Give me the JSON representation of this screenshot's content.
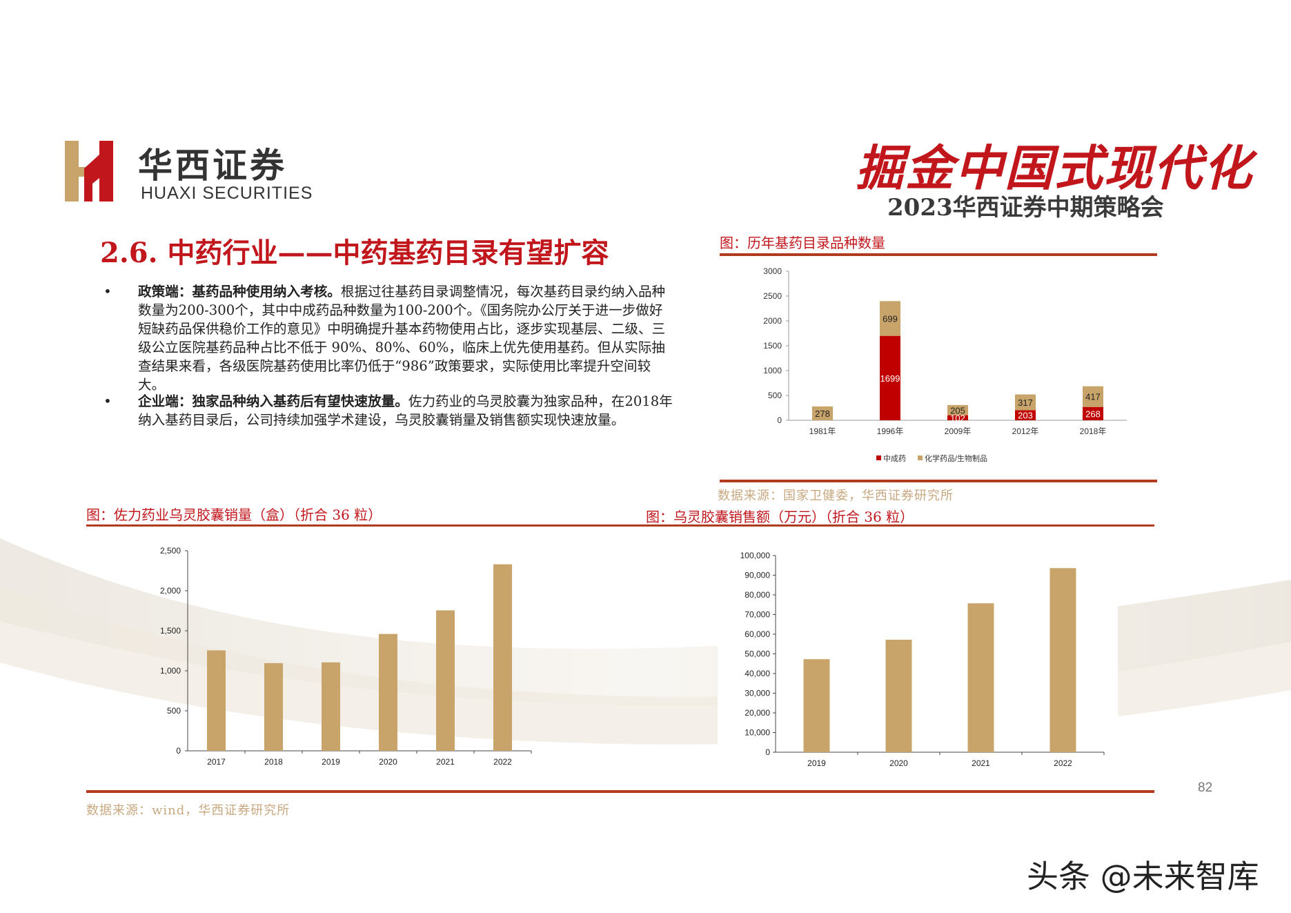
{
  "header": {
    "logo_cn": "华西证券",
    "logo_en": "HUAXI SECURITIES",
    "slogan": "掘金中国式现代化",
    "subtitle": "2023华西证券中期策略会"
  },
  "section_title": "2.6. 中药行业——中药基药目录有望扩容",
  "bullets": [
    {
      "marker": "•",
      "lead": "政策端：基药品种使用纳入考核。",
      "body": "根据过往基药目录调整情况，每次基药目录约纳入品种数量为200-300个，其中中成药品种数量为100-200个。《国务院办公厅关于进一步做好短缺药品保供稳价工作的意见》中明确提升基本药物使用占比，逐步实现基层、二级、三级公立医院基药品种占比不低于 90%、80%、60%，临床上优先使用基药。但从实际抽查结果来看，各级医院基药使用比率仍低于“986”政策要求，实际使用比率提升空间较大。"
    },
    {
      "marker": "•",
      "lead": "企业端：独家品种纳入基药后有望快速放量。",
      "body": "佐力药业的乌灵胶囊为独家品种，在2018年纳入基药目录后，公司持续加强学术建设，乌灵胶囊销量及销售额实现快速放量。"
    }
  ],
  "fig1": {
    "title": "图：历年基药目录品种数量",
    "source": "数据来源：国家卫健委，华西证券研究所"
  },
  "fig2": {
    "title": "图：佐力药业乌灵胶囊销量（盒）（折合 36 粒）"
  },
  "fig3": {
    "title": "图：乌灵胶囊销售额（万元）（折合 36 粒）"
  },
  "bottom_source": "数据来源：wind，华西证券研究所",
  "page_number": "82",
  "watermark": "头条 @未来智库",
  "colors": {
    "brand_red": "#c0161c",
    "tan": "#c8a46a",
    "bar_red": "#c00000"
  },
  "chart_data": [
    {
      "type": "bar",
      "stacked": true,
      "categories": [
        "1981年",
        "1996年",
        "2009年",
        "2012年",
        "2018年"
      ],
      "series": [
        {
          "name": "中成药",
          "values": [
            0,
            1699,
            102,
            203,
            268
          ],
          "color": "#c00000"
        },
        {
          "name": "化学药品/生物制品",
          "values": [
            278,
            699,
            205,
            317,
            417
          ],
          "color": "#c8a46a"
        }
      ],
      "data_labels": {
        "中成药": [
          "0",
          "1699",
          "102",
          "203",
          "268"
        ],
        "化学药品/生物制品": [
          "278",
          "699",
          "205",
          "317",
          "417"
        ]
      },
      "ylim": [
        0,
        3000
      ],
      "yticks": [
        "0",
        "500",
        "1000",
        "1500",
        "2000",
        "2500",
        "3000"
      ],
      "legend": "bottom"
    },
    {
      "type": "bar",
      "categories": [
        "2017",
        "2018",
        "2019",
        "2020",
        "2021",
        "2022"
      ],
      "values": [
        1255,
        1095,
        1105,
        1460,
        1755,
        2330
      ],
      "ylim": [
        0,
        2500
      ],
      "yticks": [
        "0",
        "500",
        "1,000",
        "1,500",
        "2,000",
        "2,500"
      ],
      "color": "#c8a46a"
    },
    {
      "type": "bar",
      "categories": [
        "2019",
        "2020",
        "2021",
        "2022"
      ],
      "values": [
        47300,
        57200,
        75700,
        93600
      ],
      "ylim": [
        0,
        100000
      ],
      "yticks": [
        "0",
        "10,000",
        "20,000",
        "30,000",
        "40,000",
        "50,000",
        "60,000",
        "70,000",
        "80,000",
        "90,000",
        "100,000"
      ],
      "color": "#c8a46a"
    }
  ]
}
